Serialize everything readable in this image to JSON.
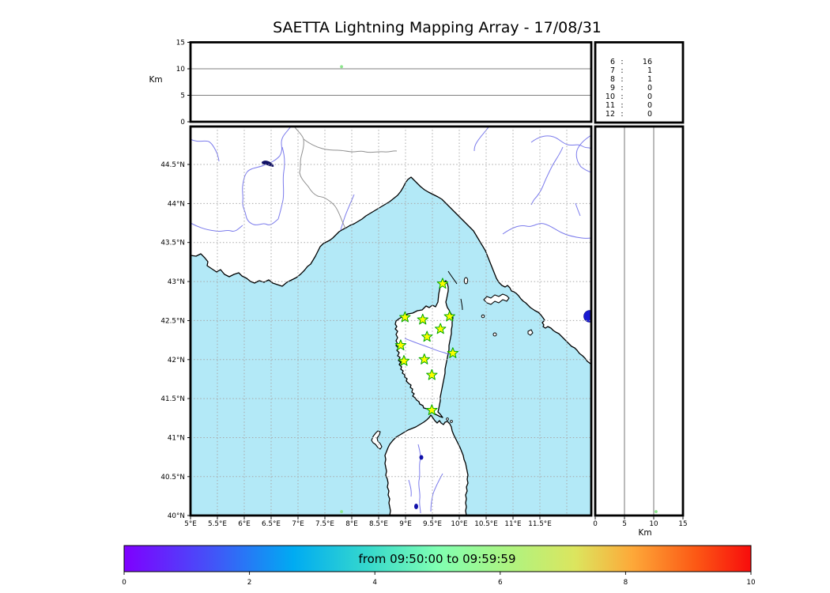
{
  "title": "SAETTA Lightning Mapping Array - 17/08/31",
  "altitude_panel": {
    "ylabel": "Km",
    "yticks": [
      "15",
      "10",
      "5",
      "0"
    ]
  },
  "legend": {
    "separator": ":",
    "rows": [
      {
        "level": "6",
        "count": "16",
        "color": "#000000"
      },
      {
        "level": "7",
        "count": "1",
        "color": "#e11212"
      },
      {
        "level": "8",
        "count": "1",
        "color": "#000000"
      },
      {
        "level": "9",
        "count": "0",
        "color": "#000000"
      },
      {
        "level": "10",
        "count": "0",
        "color": "#000000"
      },
      {
        "level": "11",
        "count": "0",
        "color": "#000000"
      },
      {
        "level": "12",
        "count": "0",
        "color": "#000000"
      }
    ]
  },
  "map": {
    "lon_ticks": [
      "5°E",
      "5.5°E",
      "6°E",
      "6.5°E",
      "7°E",
      "7.5°E",
      "8°E",
      "8.5°E",
      "9°E",
      "9.5°E",
      "10°E",
      "10.5°E",
      "11°E",
      "11.5°E"
    ],
    "lat_ticks": [
      "44.5°N",
      "44°N",
      "43.5°N",
      "43°N",
      "42.5°N",
      "42°N",
      "41.5°N",
      "41°N",
      "40.5°N",
      "40°N"
    ],
    "sea_color": "#b3e9f7",
    "land_color": "#ffffff"
  },
  "right_panel": {
    "xlabel": "Km",
    "xticks": [
      "0",
      "5",
      "10",
      "15"
    ]
  },
  "colorbar": {
    "label": "from 09:50:00 to 09:59:59",
    "ticks": [
      "0",
      "2",
      "4",
      "6",
      "8",
      "10"
    ],
    "gradient": [
      {
        "o": 0.0,
        "c": "#7f00ff"
      },
      {
        "o": 0.14,
        "c": "#4353f8"
      },
      {
        "o": 0.27,
        "c": "#00abf2"
      },
      {
        "o": 0.39,
        "c": "#36d9cc"
      },
      {
        "o": 0.5,
        "c": "#80ffb2"
      },
      {
        "o": 0.61,
        "c": "#acf482"
      },
      {
        "o": 0.72,
        "c": "#dce55e"
      },
      {
        "o": 0.81,
        "c": "#fda939"
      },
      {
        "o": 0.91,
        "c": "#fc5a15"
      },
      {
        "o": 1.0,
        "c": "#f80c0c"
      }
    ]
  },
  "chart_data": {
    "type": "scatter",
    "title": "SAETTA Lightning Mapping Array - 17/08/31",
    "panels": [
      {
        "name": "altitude-vs-longitude",
        "ylabel": "Km",
        "xlim": [
          5,
          12.46
        ],
        "ylim": [
          0,
          15
        ],
        "yticks": [
          0,
          5,
          10,
          15
        ],
        "grid_y_km": [
          5,
          10
        ]
      },
      {
        "name": "station-count-legend",
        "rows": [
          [
            "6",
            16
          ],
          [
            "7",
            1
          ],
          [
            "8",
            1
          ],
          [
            "9",
            0
          ],
          [
            "10",
            0
          ],
          [
            "11",
            0
          ],
          [
            "12",
            0
          ]
        ],
        "highlighted_level": "7"
      },
      {
        "name": "map",
        "xlim_deg_E": [
          5,
          12.46
        ],
        "ylim_deg_N": [
          40,
          44.99
        ],
        "xticks_deg_E": [
          5,
          5.5,
          6,
          6.5,
          7,
          7.5,
          8,
          8.5,
          9,
          9.5,
          10,
          10.5,
          11,
          11.5
        ],
        "yticks_deg_N": [
          44.5,
          44,
          43.5,
          43,
          42.5,
          42,
          41.5,
          41,
          40.5,
          40
        ],
        "grid": "dotted"
      },
      {
        "name": "altitude-vs-latitude",
        "xlabel": "Km",
        "xlim": [
          0,
          15
        ],
        "xticks": [
          0,
          5,
          10,
          15
        ],
        "grid_x_km": [
          5,
          10
        ]
      }
    ],
    "station_marker": {
      "shape": "star",
      "fill": "#fdfd00",
      "stroke": "#00a800"
    },
    "stations_deg": [
      [
        9.69,
        42.97
      ],
      [
        8.99,
        42.54
      ],
      [
        9.32,
        42.51
      ],
      [
        9.82,
        42.55
      ],
      [
        9.65,
        42.39
      ],
      [
        9.4,
        42.29
      ],
      [
        8.91,
        42.18
      ],
      [
        9.88,
        42.08
      ],
      [
        8.97,
        41.98
      ],
      [
        9.35,
        42.0
      ],
      [
        9.49,
        41.8
      ],
      [
        9.49,
        41.35
      ]
    ],
    "lightning_sources": [
      {
        "lon_deg_E": 7.81,
        "lat_deg_N": 40.05,
        "alt_km": 10.4,
        "color": "#8ce68c"
      }
    ],
    "colorbar": {
      "label": "from 09:50:00 to 09:59:59",
      "range_minutes": [
        0,
        10
      ],
      "ticks": [
        0,
        2,
        4,
        6,
        8,
        10
      ],
      "colormap": "rainbow"
    }
  }
}
